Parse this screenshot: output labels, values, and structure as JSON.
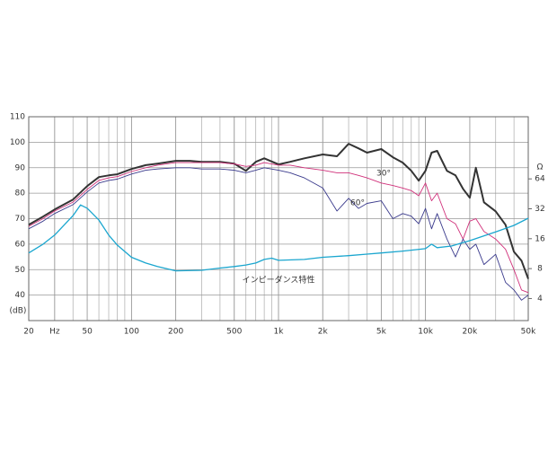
{
  "chart_data": {
    "type": "line",
    "y_label": "(dB)",
    "y2_label": "Ω",
    "log_x": true,
    "log_y2": true,
    "grid": true,
    "minor_grid": true,
    "xlim": [
      20,
      50000
    ],
    "xticks": [
      20,
      {
        "value": 30,
        "label": "Hz"
      },
      50,
      100,
      200,
      500,
      {
        "value": 1000,
        "label": "1k"
      },
      {
        "value": 2000,
        "label": "2k"
      },
      {
        "value": 5000,
        "label": "5k"
      },
      {
        "value": 10000,
        "label": "10k"
      },
      {
        "value": 20000,
        "label": "20k"
      },
      {
        "value": 50000,
        "label": "50k"
      }
    ],
    "ylim": [
      30,
      110
    ],
    "yticks": [
      40,
      50,
      60,
      70,
      80,
      90,
      100,
      110
    ],
    "y2lim": [
      2.4,
      270
    ],
    "y2ticks": [
      4,
      8,
      16,
      32,
      64
    ],
    "x": [
      20,
      25,
      30,
      40,
      50,
      60,
      70,
      80,
      100,
      125,
      150,
      200,
      250,
      300,
      400,
      500,
      600,
      700,
      800,
      1000,
      1200,
      1500,
      2000,
      2500,
      3000,
      3500,
      4000,
      5000,
      6000,
      7000,
      8000,
      9000,
      10000,
      11000,
      12000,
      14000,
      16000,
      18000,
      20000,
      22000,
      25000,
      30000,
      35000,
      40000,
      45000,
      50000
    ],
    "series": [
      {
        "color": "#333333",
        "values": [
          67.6,
          70.8,
          73.6,
          77.5,
          82.8,
          86.3,
          87,
          87.4,
          89.5,
          91,
          91.6,
          92.7,
          92.7,
          92.3,
          92.3,
          91.6,
          88.8,
          92.3,
          93.7,
          91.3,
          92.3,
          93.7,
          95.2,
          94.5,
          99.4,
          97.6,
          95.9,
          97.3,
          94.1,
          92,
          88.8,
          84.9,
          88.8,
          95.9,
          96.6,
          88.8,
          87,
          81.7,
          78.2,
          90,
          76.4,
          72.9,
          67.6,
          57,
          53.5,
          46.4
        ]
      },
      {
        "name": "30°",
        "color": "#d0307a",
        "values": [
          67,
          70,
          73,
          76.5,
          81.5,
          85,
          86,
          86.5,
          88.5,
          90,
          91,
          92,
          92,
          92,
          92,
          91.5,
          90.5,
          91,
          92,
          91,
          91,
          90,
          89,
          88,
          88,
          87,
          86,
          84,
          83,
          82,
          81,
          79,
          84,
          77,
          80,
          70,
          68,
          62,
          69,
          70,
          65,
          62,
          58,
          50,
          42,
          41
        ]
      },
      {
        "name": "60°",
        "color": "#3a3a8c",
        "values": [
          66,
          69,
          72,
          75.5,
          80.5,
          84,
          85,
          85.5,
          87.5,
          89,
          89.5,
          90,
          90,
          89.5,
          89.5,
          89,
          88,
          89,
          90,
          89,
          88,
          86,
          82,
          73,
          78,
          74,
          76,
          77,
          70,
          72,
          71,
          68,
          74,
          66,
          72,
          62,
          55,
          62,
          58,
          60,
          52,
          56,
          45,
          42,
          38,
          40
        ]
      },
      {
        "name": "インピーダンス特性",
        "color": "#1aa6cf",
        "axis": "y2",
        "x": [
          20,
          25,
          30,
          40,
          45,
          50,
          60,
          70,
          80,
          100,
          125,
          150,
          200,
          300,
          400,
          500,
          600,
          700,
          800,
          900,
          1000,
          1500,
          2000,
          3000,
          4000,
          5000,
          7000,
          10000,
          11000,
          12000,
          15000,
          20000,
          30000,
          40000,
          50000
        ],
        "values": [
          11.5,
          14.1,
          17.4,
          27.3,
          35,
          32.4,
          24.6,
          17.4,
          13.8,
          10.4,
          9.1,
          8.4,
          7.6,
          7.7,
          8.1,
          8.4,
          8.7,
          9.1,
          9.9,
          10.2,
          9.7,
          9.9,
          10.4,
          10.8,
          11.2,
          11.5,
          12,
          12.7,
          14.1,
          13,
          13.5,
          15.3,
          18.7,
          21.8,
          25.7
        ]
      }
    ]
  }
}
